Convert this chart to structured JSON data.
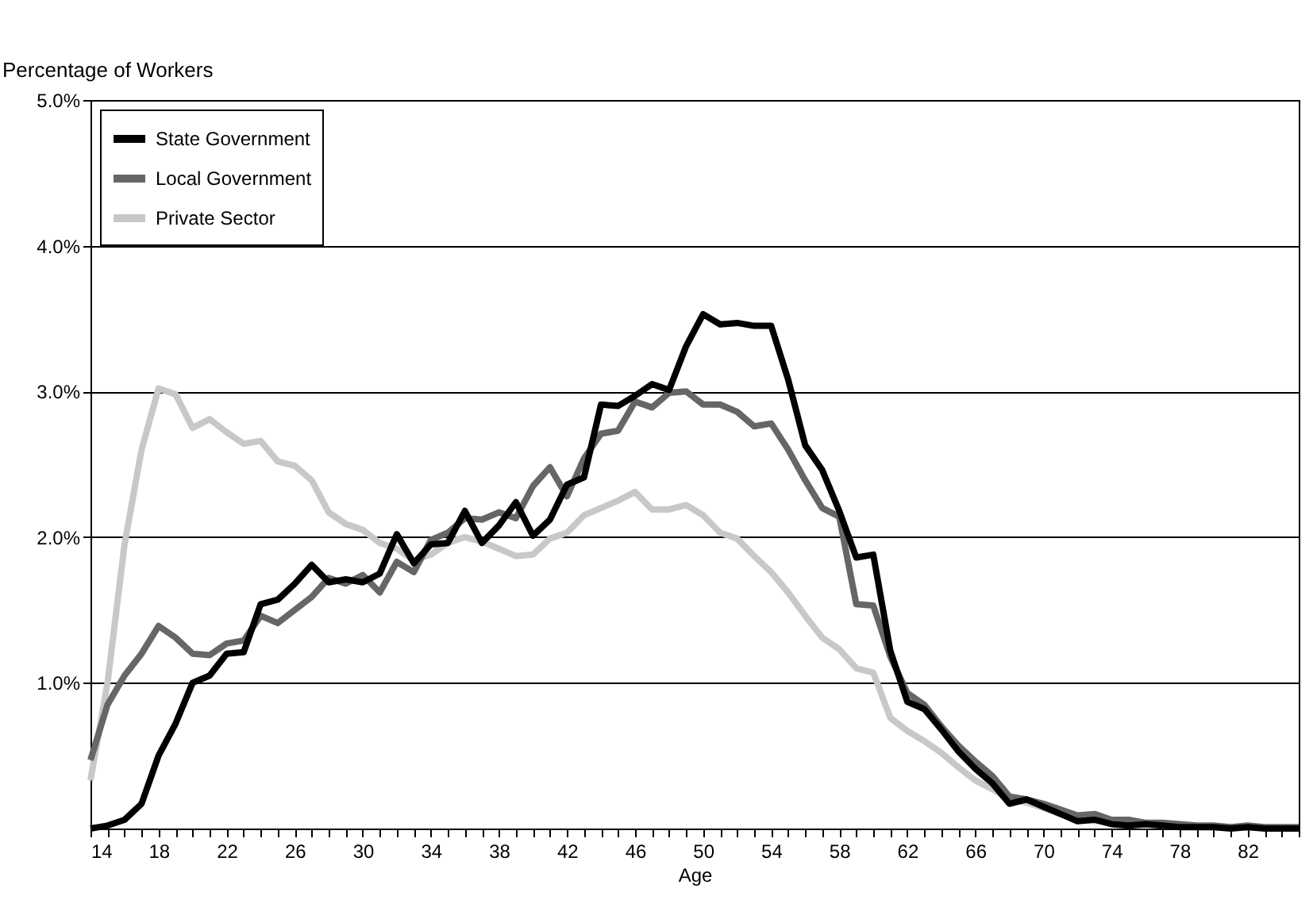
{
  "chart_data": {
    "type": "line",
    "ylabel": "Percentage of Workers",
    "xlabel": "Age",
    "x": [
      14,
      15,
      16,
      17,
      18,
      19,
      20,
      21,
      22,
      23,
      24,
      25,
      26,
      27,
      28,
      29,
      30,
      31,
      32,
      33,
      34,
      35,
      36,
      37,
      38,
      39,
      40,
      41,
      42,
      43,
      44,
      45,
      46,
      47,
      48,
      49,
      50,
      51,
      52,
      53,
      54,
      55,
      56,
      57,
      58,
      59,
      60,
      61,
      62,
      63,
      64,
      65,
      66,
      67,
      68,
      69,
      70,
      71,
      72,
      73,
      74,
      75,
      76,
      77,
      78,
      79,
      80,
      81,
      82,
      83,
      84,
      85
    ],
    "series": [
      {
        "name": "State Government",
        "color": "#000000",
        "values": [
          0.0,
          0.02,
          0.06,
          0.17,
          0.5,
          0.72,
          1.0,
          1.05,
          1.2,
          1.21,
          1.54,
          1.57,
          1.68,
          1.81,
          1.69,
          1.71,
          1.69,
          1.75,
          2.02,
          1.82,
          1.95,
          1.96,
          2.18,
          1.96,
          2.08,
          2.24,
          2.01,
          2.12,
          2.36,
          2.41,
          2.91,
          2.9,
          2.97,
          3.05,
          3.01,
          3.31,
          3.53,
          3.46,
          3.47,
          3.45,
          3.45,
          3.08,
          2.63,
          2.46,
          2.18,
          1.86,
          1.88,
          1.22,
          0.87,
          0.82,
          0.68,
          0.53,
          0.41,
          0.31,
          0.17,
          0.2,
          0.15,
          0.1,
          0.05,
          0.06,
          0.03,
          0.02,
          0.03,
          0.02,
          0.01,
          0.01,
          0.01,
          0.0,
          0.01,
          0.0,
          0.0,
          0.0
        ]
      },
      {
        "name": "Local Government",
        "color": "#666666",
        "values": [
          0.47,
          0.85,
          1.05,
          1.2,
          1.39,
          1.31,
          1.2,
          1.19,
          1.27,
          1.29,
          1.46,
          1.41,
          1.5,
          1.59,
          1.72,
          1.68,
          1.74,
          1.62,
          1.83,
          1.76,
          1.98,
          2.03,
          2.13,
          2.12,
          2.17,
          2.13,
          2.35,
          2.48,
          2.28,
          2.54,
          2.71,
          2.73,
          2.93,
          2.89,
          2.99,
          3.0,
          2.91,
          2.91,
          2.86,
          2.76,
          2.78,
          2.6,
          2.39,
          2.2,
          2.14,
          1.54,
          1.53,
          1.18,
          0.93,
          0.85,
          0.7,
          0.57,
          0.46,
          0.36,
          0.22,
          0.2,
          0.17,
          0.13,
          0.09,
          0.1,
          0.06,
          0.06,
          0.04,
          0.04,
          0.03,
          0.02,
          0.02,
          0.01,
          0.02,
          0.01,
          0.01,
          0.01
        ]
      },
      {
        "name": "Private Sector",
        "color": "#c8c8c8",
        "values": [
          0.33,
          1.0,
          1.95,
          2.6,
          3.02,
          2.98,
          2.75,
          2.81,
          2.72,
          2.64,
          2.66,
          2.52,
          2.49,
          2.39,
          2.17,
          2.09,
          2.05,
          1.96,
          1.92,
          1.84,
          1.88,
          1.96,
          2.0,
          1.97,
          1.92,
          1.87,
          1.88,
          1.99,
          2.03,
          2.15,
          2.2,
          2.25,
          2.31,
          2.19,
          2.19,
          2.22,
          2.15,
          2.03,
          1.99,
          1.87,
          1.76,
          1.62,
          1.46,
          1.31,
          1.23,
          1.1,
          1.07,
          0.76,
          0.67,
          0.6,
          0.52,
          0.42,
          0.33,
          0.27,
          0.2,
          0.18,
          0.14,
          0.1,
          0.07,
          0.06,
          0.04,
          0.04,
          0.03,
          0.02,
          0.02,
          0.01,
          0.01,
          0.01,
          0.01,
          0.01,
          null,
          null
        ]
      }
    ],
    "xlim": [
      14,
      85
    ],
    "xticks": [
      14,
      {
        "value": 15,
        "label": null
      },
      {
        "value": 16,
        "label": null
      },
      {
        "value": 17,
        "label": null
      },
      18,
      {
        "value": 19,
        "label": null
      },
      {
        "value": 20,
        "label": null
      },
      {
        "value": 21,
        "label": null
      },
      22,
      {
        "value": 23,
        "label": null
      },
      {
        "value": 24,
        "label": null
      },
      {
        "value": 25,
        "label": null
      },
      26,
      {
        "value": 27,
        "label": null
      },
      {
        "value": 28,
        "label": null
      },
      {
        "value": 29,
        "label": null
      },
      30,
      {
        "value": 31,
        "label": null
      },
      {
        "value": 32,
        "label": null
      },
      {
        "value": 33,
        "label": null
      },
      34,
      {
        "value": 35,
        "label": null
      },
      {
        "value": 36,
        "label": null
      },
      {
        "value": 37,
        "label": null
      },
      38,
      {
        "value": 39,
        "label": null
      },
      {
        "value": 40,
        "label": null
      },
      {
        "value": 41,
        "label": null
      },
      42,
      {
        "value": 43,
        "label": null
      },
      {
        "value": 44,
        "label": null
      },
      {
        "value": 45,
        "label": null
      },
      46,
      {
        "value": 47,
        "label": null
      },
      {
        "value": 48,
        "label": null
      },
      {
        "value": 49,
        "label": null
      },
      50,
      {
        "value": 51,
        "label": null
      },
      {
        "value": 52,
        "label": null
      },
      {
        "value": 53,
        "label": null
      },
      54,
      {
        "value": 55,
        "label": null
      },
      {
        "value": 56,
        "label": null
      },
      {
        "value": 57,
        "label": null
      },
      58,
      {
        "value": 59,
        "label": null
      },
      {
        "value": 60,
        "label": null
      },
      {
        "value": 61,
        "label": null
      },
      62,
      {
        "value": 63,
        "label": null
      },
      {
        "value": 64,
        "label": null
      },
      {
        "value": 65,
        "label": null
      },
      66,
      {
        "value": 67,
        "label": null
      },
      {
        "value": 68,
        "label": null
      },
      {
        "value": 69,
        "label": null
      },
      70,
      {
        "value": 71,
        "label": null
      },
      {
        "value": 72,
        "label": null
      },
      {
        "value": 73,
        "label": null
      },
      74,
      {
        "value": 75,
        "label": null
      },
      {
        "value": 76,
        "label": null
      },
      {
        "value": 77,
        "label": null
      },
      78,
      {
        "value": 79,
        "label": null
      },
      {
        "value": 80,
        "label": null
      },
      {
        "value": 81,
        "label": null
      },
      82,
      {
        "value": 83,
        "label": null
      },
      {
        "value": 84,
        "label": null
      },
      {
        "value": 85,
        "label": null
      }
    ],
    "ylim": [
      0,
      5
    ],
    "yticks": [
      {
        "value": 1,
        "label": "1.0%"
      },
      {
        "value": 2,
        "label": "2.0%"
      },
      {
        "value": 3,
        "label": "3.0%"
      },
      {
        "value": 4,
        "label": "4.0%"
      },
      {
        "value": 5,
        "label": "5.0%"
      }
    ],
    "grid": "y",
    "legend": "top left",
    "marker": "none",
    "line_style": "solid"
  }
}
